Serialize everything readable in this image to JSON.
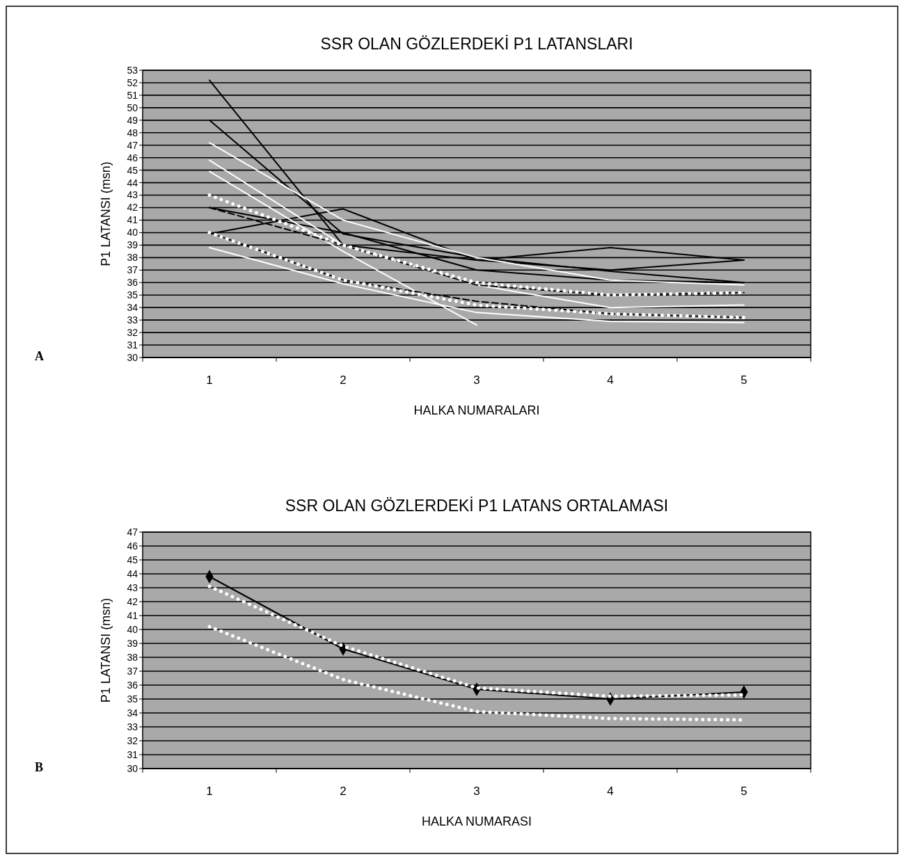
{
  "chart_data": [
    {
      "type": "line",
      "title": "SSR OLAN GÖZLERDEKİ P1 LATANSLARI",
      "xlabel": "HALKA NUMARALARI",
      "ylabel": "P1 LATANSI (msn)",
      "categories": [
        "1",
        "2",
        "3",
        "4",
        "5"
      ],
      "ylim": [
        30,
        53
      ],
      "yticks": [
        30,
        31,
        32,
        33,
        34,
        35,
        36,
        37,
        38,
        39,
        40,
        41,
        42,
        43,
        44,
        45,
        46,
        47,
        48,
        49,
        50,
        51,
        52,
        53
      ],
      "grid": "y",
      "annotations": [
        "A"
      ],
      "series": [
        {
          "color": "#000000",
          "line_style": "solid",
          "values": [
            52.2,
            39.0,
            37.8,
            37.0,
            37.8
          ]
        },
        {
          "color": "#000000",
          "line_style": "solid",
          "values": [
            49.0,
            39.9,
            38.0,
            36.9,
            36.0
          ]
        },
        {
          "color": "#000000",
          "line_style": "solid",
          "values": [
            42.0,
            40.0,
            37.0,
            36.2,
            36.0
          ]
        },
        {
          "color": "#000000",
          "line_style": "solid",
          "values": [
            39.9,
            41.9,
            37.8,
            38.8,
            37.8
          ]
        },
        {
          "color": "#ffffff",
          "line_style": "solid",
          "values": [
            47.2,
            41.0,
            38.0,
            36.2,
            35.8
          ]
        },
        {
          "color": "#ffffff",
          "line_style": "solid",
          "values": [
            45.8,
            39.0,
            35.8,
            34.0,
            34.2
          ]
        },
        {
          "color": "#ffffff",
          "line_style": "solid",
          "values": [
            44.9,
            38.5,
            32.6,
            null,
            null
          ]
        },
        {
          "color": "#ffffff",
          "line_style": "solid",
          "values": [
            38.8,
            35.9,
            33.6,
            32.9,
            32.8
          ]
        },
        {
          "color": "#000000",
          "line_style": "dashed",
          "values": [
            42.0,
            39.0,
            35.8,
            35.0,
            35.2
          ]
        },
        {
          "color": "#ffffff",
          "line_style": "dotted",
          "values": [
            43.0,
            39.0,
            36.0,
            35.0,
            35.2
          ]
        },
        {
          "color": "#000000",
          "line_style": "dashed",
          "values": [
            40.0,
            36.2,
            34.5,
            33.5,
            33.2
          ]
        },
        {
          "color": "#ffffff",
          "line_style": "dotted",
          "values": [
            40.0,
            36.2,
            34.2,
            33.5,
            33.2
          ]
        }
      ]
    },
    {
      "type": "line",
      "title": "SSR OLAN GÖZLERDEKİ P1 LATANS ORTALAMASI",
      "xlabel": "HALKA NUMARASI",
      "ylabel": "P1 LATANSI (msn)",
      "categories": [
        "1",
        "2",
        "3",
        "4",
        "5"
      ],
      "ylim": [
        30,
        47
      ],
      "yticks": [
        30,
        31,
        32,
        33,
        34,
        35,
        36,
        37,
        38,
        39,
        40,
        41,
        42,
        43,
        44,
        45,
        46,
        47
      ],
      "grid": "y",
      "annotations": [
        "B"
      ],
      "series": [
        {
          "color": "#000000",
          "line_style": "solid",
          "marker": "diamond",
          "values": [
            43.8,
            38.6,
            35.7,
            35.0,
            35.5
          ]
        },
        {
          "color": "#ffffff",
          "line_style": "dotted",
          "values": [
            43.1,
            38.8,
            35.8,
            35.2,
            35.3
          ]
        },
        {
          "color": "#ffffff",
          "line_style": "dotted",
          "values": [
            40.2,
            36.4,
            34.1,
            33.6,
            33.5
          ]
        }
      ]
    }
  ]
}
